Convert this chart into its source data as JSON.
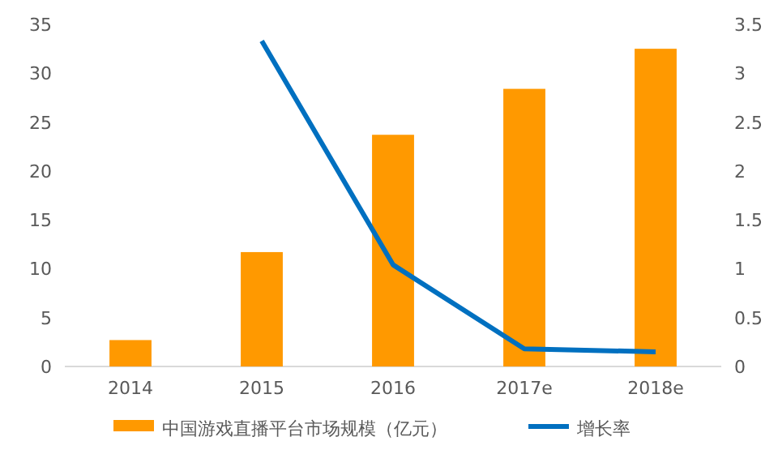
{
  "chart_data": {
    "type": "bar",
    "categories": [
      "2014",
      "2015",
      "2016",
      "2017e",
      "2018e"
    ],
    "series": [
      {
        "name": "中国游戏直播平台市场规模（亿元）",
        "color": "#ff9900",
        "values": [
          2.7,
          11.7,
          23.7,
          28.4,
          32.5
        ]
      },
      {
        "name": "增长率",
        "type": "line",
        "axis": "y2",
        "color": "#0070c0",
        "values": [
          null,
          3.33,
          1.04,
          0.18,
          0.15
        ]
      }
    ],
    "ylim": [
      0,
      35
    ],
    "yticks": [
      0,
      5,
      10,
      15,
      20,
      25,
      30,
      35
    ],
    "y2lim": [
      0,
      3.5
    ],
    "y2ticks": [
      0,
      0.5,
      1,
      1.5,
      2,
      2.5,
      3,
      3.5
    ],
    "grid": false,
    "legend": "bottom"
  }
}
